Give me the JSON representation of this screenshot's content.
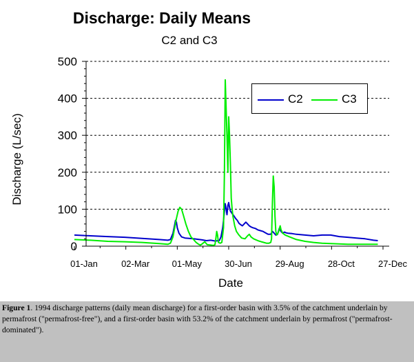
{
  "caption": {
    "label": "Figure 1",
    "text": ". 1994 discharge patterns (daily mean discharge) for a first-order basin with 3.5% of the catchment underlain by permafrost (\"permafrost-free\"), and a first-order basin with 53.2%  of the catchment underlain by permafrost (\"permafrost-dominated\")."
  },
  "chart_data": {
    "type": "line",
    "title": "Discharge: Daily Means",
    "subtitle": "C2 and C3",
    "xlabel": "Date",
    "ylabel": "Discharge (L/sec)",
    "ylim": [
      0,
      500
    ],
    "xlim": [
      1,
      365
    ],
    "yticks": [
      0,
      100,
      200,
      300,
      400,
      500
    ],
    "xticks": [
      {
        "day": 1,
        "label": "01-Jan"
      },
      {
        "day": 61,
        "label": "02-Mar"
      },
      {
        "day": 121,
        "label": "01-May"
      },
      {
        "day": 181,
        "label": "30-Jun"
      },
      {
        "day": 241,
        "label": "29-Aug"
      },
      {
        "day": 301,
        "label": "28-Oct"
      },
      {
        "day": 361,
        "label": "27-Dec"
      }
    ],
    "grid": "horizontal dashed",
    "legend_position": "top-right",
    "x_unit": "day of year 1994",
    "series": [
      {
        "name": "C2",
        "color": "#0000cc",
        "points": [
          [
            1,
            30
          ],
          [
            20,
            28
          ],
          [
            40,
            26
          ],
          [
            60,
            24
          ],
          [
            80,
            21
          ],
          [
            100,
            18
          ],
          [
            110,
            16
          ],
          [
            113,
            18
          ],
          [
            116,
            35
          ],
          [
            118,
            58
          ],
          [
            119,
            70
          ],
          [
            120,
            65
          ],
          [
            121,
            50
          ],
          [
            123,
            35
          ],
          [
            126,
            25
          ],
          [
            130,
            22
          ],
          [
            140,
            20
          ],
          [
            150,
            17
          ],
          [
            155,
            15
          ],
          [
            160,
            16
          ],
          [
            165,
            14
          ],
          [
            170,
            15
          ],
          [
            172,
            25
          ],
          [
            174,
            50
          ],
          [
            175,
            70
          ],
          [
            176,
            95
          ],
          [
            177,
            115
          ],
          [
            178,
            100
          ],
          [
            179,
            85
          ],
          [
            180,
            110
          ],
          [
            181,
            118
          ],
          [
            182,
            105
          ],
          [
            183,
            95
          ],
          [
            185,
            88
          ],
          [
            187,
            82
          ],
          [
            189,
            75
          ],
          [
            191,
            70
          ],
          [
            193,
            62
          ],
          [
            195,
            58
          ],
          [
            197,
            55
          ],
          [
            199,
            60
          ],
          [
            201,
            65
          ],
          [
            203,
            60
          ],
          [
            205,
            55
          ],
          [
            207,
            52
          ],
          [
            209,
            50
          ],
          [
            212,
            48
          ],
          [
            215,
            44
          ],
          [
            218,
            42
          ],
          [
            221,
            40
          ],
          [
            224,
            36
          ],
          [
            227,
            32
          ],
          [
            230,
            32
          ],
          [
            232,
            40
          ],
          [
            234,
            35
          ],
          [
            236,
            30
          ],
          [
            238,
            32
          ],
          [
            240,
            48
          ],
          [
            242,
            40
          ],
          [
            244,
            35
          ],
          [
            246,
            38
          ],
          [
            248,
            36
          ],
          [
            250,
            35
          ],
          [
            255,
            34
          ],
          [
            260,
            32
          ],
          [
            270,
            30
          ],
          [
            280,
            28
          ],
          [
            290,
            30
          ],
          [
            300,
            30
          ],
          [
            310,
            26
          ],
          [
            320,
            24
          ],
          [
            330,
            22
          ],
          [
            340,
            20
          ],
          [
            350,
            16
          ],
          [
            355,
            15
          ]
        ]
      },
      {
        "name": "C3",
        "color": "#00ee00",
        "points": [
          [
            1,
            18
          ],
          [
            20,
            16
          ],
          [
            40,
            13
          ],
          [
            60,
            12
          ],
          [
            80,
            10
          ],
          [
            100,
            7
          ],
          [
            110,
            5
          ],
          [
            113,
            8
          ],
          [
            116,
            25
          ],
          [
            118,
            50
          ],
          [
            120,
            75
          ],
          [
            122,
            95
          ],
          [
            124,
            105
          ],
          [
            126,
            100
          ],
          [
            128,
            85
          ],
          [
            131,
            60
          ],
          [
            134,
            40
          ],
          [
            137,
            25
          ],
          [
            140,
            18
          ],
          [
            143,
            10
          ],
          [
            146,
            5
          ],
          [
            148,
            3
          ],
          [
            150,
            6
          ],
          [
            153,
            12
          ],
          [
            156,
            4
          ],
          [
            160,
            3
          ],
          [
            163,
            2
          ],
          [
            165,
            4
          ],
          [
            166,
            20
          ],
          [
            167,
            40
          ],
          [
            168,
            30
          ],
          [
            169,
            10
          ],
          [
            171,
            8
          ],
          [
            173,
            10
          ],
          [
            175,
            50
          ],
          [
            176,
            200
          ],
          [
            177,
            450
          ],
          [
            178,
            370
          ],
          [
            179,
            300
          ],
          [
            180,
            200
          ],
          [
            181,
            350
          ],
          [
            182,
            300
          ],
          [
            183,
            220
          ],
          [
            184,
            130
          ],
          [
            185,
            100
          ],
          [
            186,
            80
          ],
          [
            188,
            55
          ],
          [
            190,
            40
          ],
          [
            193,
            30
          ],
          [
            196,
            22
          ],
          [
            200,
            20
          ],
          [
            203,
            28
          ],
          [
            205,
            32
          ],
          [
            207,
            25
          ],
          [
            210,
            20
          ],
          [
            213,
            17
          ],
          [
            216,
            14
          ],
          [
            219,
            12
          ],
          [
            222,
            10
          ],
          [
            225,
            8
          ],
          [
            228,
            8
          ],
          [
            230,
            10
          ],
          [
            231,
            20
          ],
          [
            232,
            120
          ],
          [
            233,
            190
          ],
          [
            234,
            160
          ],
          [
            235,
            80
          ],
          [
            236,
            40
          ],
          [
            237,
            30
          ],
          [
            239,
            38
          ],
          [
            241,
            55
          ],
          [
            242,
            45
          ],
          [
            244,
            35
          ],
          [
            247,
            30
          ],
          [
            252,
            25
          ],
          [
            260,
            18
          ],
          [
            270,
            13
          ],
          [
            280,
            10
          ],
          [
            290,
            8
          ],
          [
            300,
            7
          ],
          [
            310,
            6
          ],
          [
            320,
            5
          ],
          [
            330,
            5
          ],
          [
            340,
            5
          ],
          [
            350,
            5
          ],
          [
            355,
            5
          ]
        ]
      }
    ]
  }
}
